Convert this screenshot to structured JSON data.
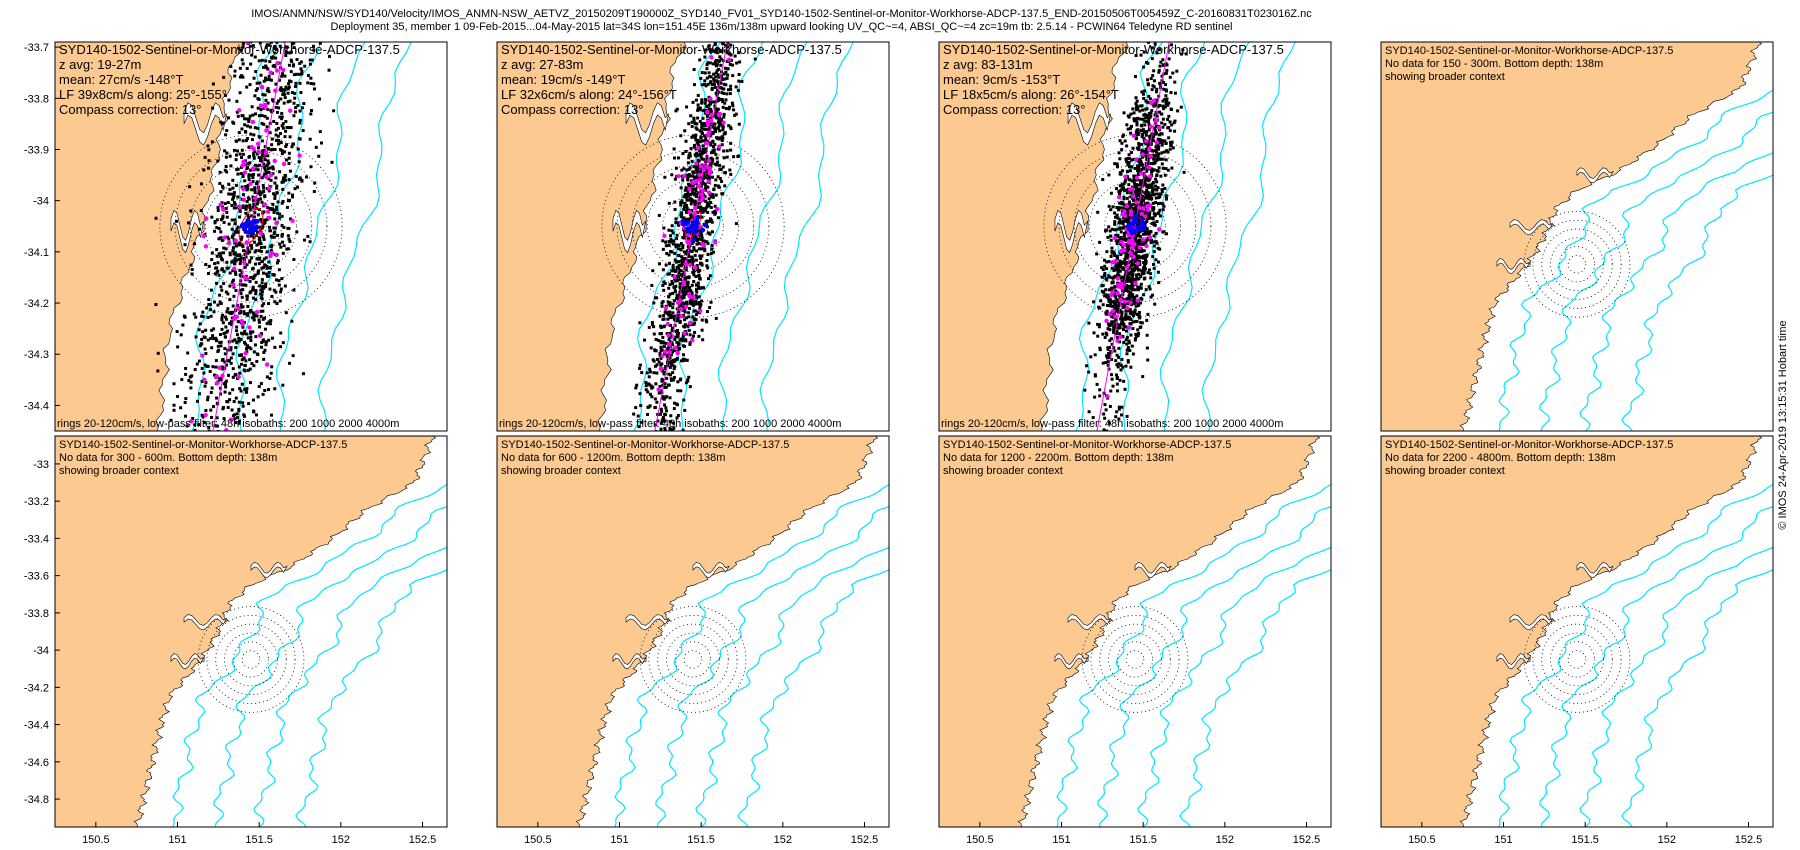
{
  "header": {
    "line1": "IMOS/ANMN/NSW/SYD140/Velocity/IMOS_ANMN-NSW_AETVZ_20150209T190000Z_SYD140_FV01_SYD140-1502-Sentinel-or-Monitor-Workhorse-ADCP-137.5_END-20150506T005459Z_C-20160831T023016Z.nc",
    "line2": "Deployment 35, member 1 09-Feb-2015...04-May-2015 lat=34S lon=151.45E 136m/138m upward looking UV_QC~=4, ABSI_QC~=4 zc=19m tb: 2.5.14 - PCWIN64 Teledyne RD sentinel"
  },
  "credit": "© IMOS 24-Apr-2019 13:15:31 Hobart time",
  "colors": {
    "land": "#fcc990",
    "isobath": "#00e5ff",
    "rings": "#000000",
    "scatter": "#000000",
    "lowpass_points": "#ff00ff",
    "major_axis_line": "#ff00ff",
    "ellipse": "#ff0000",
    "mean_points": "#0000ff"
  },
  "chart_data": [
    {
      "type": "scatter",
      "title": "SYD140-1502-Sentinel-or-Monitor-Workhorse-ADCP-137.5",
      "annotations": [
        "z avg: 19-27m",
        "mean: 27cm/s -148°T",
        "LF 39x8cm/s along: 25°-155°",
        "Compass correction: 13°"
      ],
      "footer": "rings 20-120cm/s, low-pass filter: 48h isobaths: 200 1000 2000 4000m",
      "has_data": true,
      "spread": [
        0.42,
        0.14
      ],
      "xlim": [
        150.25,
        152.65
      ],
      "ylim": [
        -34.45,
        -33.69
      ],
      "yticks": [
        -33.7,
        -33.8,
        -33.9,
        -34,
        -34.1,
        -34.2,
        -34.3,
        -34.4
      ],
      "xticks": []
    },
    {
      "type": "scatter",
      "title": "SYD140-1502-Sentinel-or-Monitor-Workhorse-ADCP-137.5",
      "annotations": [
        "z avg: 27-83m",
        "mean: 19cm/s -149°T",
        "LF 32x6cm/s along: 24°-156°T",
        "Compass correction: 13°"
      ],
      "footer": "rings 20-120cm/s, low-pass filter: 48h isobaths: 200 1000 2000 4000m",
      "has_data": true,
      "spread": [
        0.34,
        0.07
      ],
      "xlim": [
        150.25,
        152.65
      ],
      "ylim": [
        -34.45,
        -33.69
      ],
      "yticks": [],
      "xticks": []
    },
    {
      "type": "scatter",
      "title": "SYD140-1502-Sentinel-or-Monitor-Workhorse-ADCP-137.5",
      "annotations": [
        "z avg: 83-131m",
        "mean: 9cm/s -153°T",
        "LF 18x5cm/s along: 26°-154°T",
        "Compass correction: 13°"
      ],
      "footer": "rings 20-120cm/s, low-pass filter: 48h isobaths: 200 1000 2000 4000m",
      "has_data": true,
      "spread": [
        0.21,
        0.07
      ],
      "xlim": [
        150.25,
        152.65
      ],
      "ylim": [
        -34.45,
        -33.69
      ],
      "yticks": [],
      "xticks": []
    },
    {
      "type": "map",
      "title": "SYD140-1502-Sentinel-or-Monitor-Workhorse-ADCP-137.5",
      "annotations": [
        "No data for 150 - 300m. Bottom depth: 138m",
        "showing broader context"
      ],
      "has_data": false,
      "xlim": [
        150.25,
        152.65
      ],
      "ylim": [
        -34.95,
        -32.85
      ],
      "yticks": [],
      "xticks": []
    },
    {
      "type": "map",
      "title": "SYD140-1502-Sentinel-or-Monitor-Workhorse-ADCP-137.5",
      "annotations": [
        "No data for 300 - 600m. Bottom depth: 138m",
        "showing broader context"
      ],
      "has_data": false,
      "xlim": [
        150.25,
        152.65
      ],
      "ylim": [
        -34.95,
        -32.85
      ],
      "yticks": [
        -33,
        -33.2,
        -33.4,
        -33.6,
        -33.8,
        -34,
        -34.2,
        -34.4,
        -34.6,
        -34.8
      ],
      "xticks": [
        150.5,
        151,
        151.5,
        152,
        152.5
      ]
    },
    {
      "type": "map",
      "title": "SYD140-1502-Sentinel-or-Monitor-Workhorse-ADCP-137.5",
      "annotations": [
        "No data for 600 - 1200m. Bottom depth: 138m",
        "showing broader context"
      ],
      "has_data": false,
      "xlim": [
        150.25,
        152.65
      ],
      "ylim": [
        -34.95,
        -32.85
      ],
      "yticks": [],
      "xticks": [
        150.5,
        151,
        151.5,
        152,
        152.5
      ]
    },
    {
      "type": "map",
      "title": "SYD140-1502-Sentinel-or-Monitor-Workhorse-ADCP-137.5",
      "annotations": [
        "No data for 1200 - 2200m. Bottom depth: 138m",
        "showing broader context"
      ],
      "has_data": false,
      "xlim": [
        150.25,
        152.65
      ],
      "ylim": [
        -34.95,
        -32.85
      ],
      "yticks": [],
      "xticks": [
        150.5,
        151,
        151.5,
        152,
        152.5
      ]
    },
    {
      "type": "map",
      "title": "SYD140-1502-Sentinel-or-Monitor-Workhorse-ADCP-137.5",
      "annotations": [
        "No data for 2200 - 4800m. Bottom depth: 138m",
        "showing broader context"
      ],
      "has_data": false,
      "xlim": [
        150.25,
        152.65
      ],
      "ylim": [
        -34.95,
        -32.85
      ],
      "yticks": [],
      "xticks": [
        150.5,
        151,
        151.5,
        152,
        152.5
      ]
    }
  ]
}
